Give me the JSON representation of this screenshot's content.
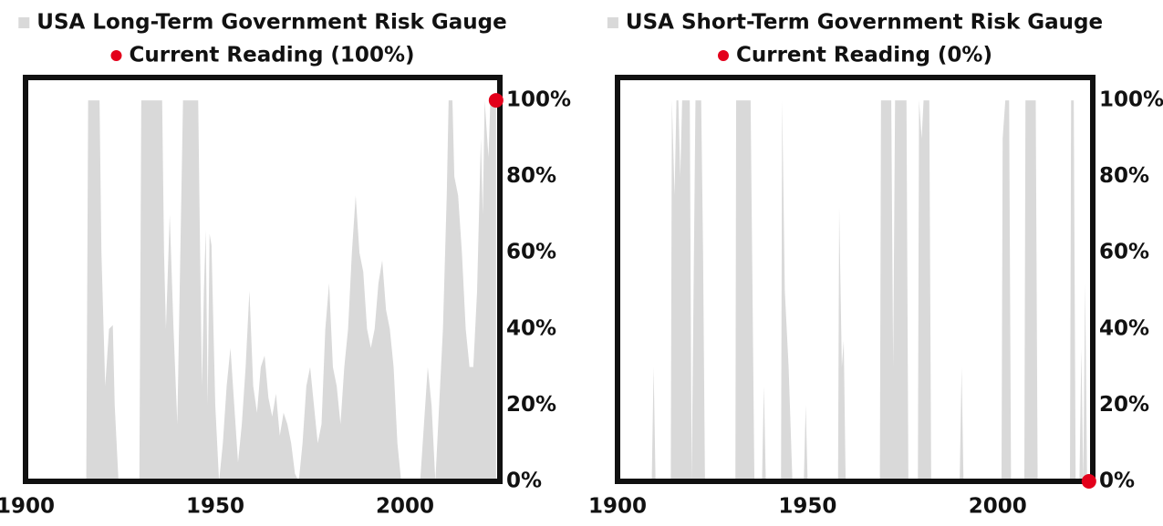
{
  "chart_data": [
    {
      "type": "area",
      "series": [
        {
          "name": "USA Long-Term Government Risk Gauge",
          "color": "#d9d9d9",
          "type": "area",
          "x": [
            1900,
            1916,
            1916.5,
            1919.5,
            1920,
            1921,
            1922,
            1923,
            1923.5,
            1924.5,
            1930,
            1930.5,
            1936,
            1936.5,
            1937,
            1938,
            1939,
            1940,
            1941.5,
            1945.5,
            1946,
            1946.5,
            1947,
            1947.5,
            1948,
            1948.5,
            1949,
            1950,
            1951,
            1952,
            1953,
            1954,
            1955,
            1956,
            1957,
            1958,
            1959,
            1960,
            1961,
            1962,
            1963,
            1964,
            1965,
            1966,
            1967,
            1968,
            1969,
            1970,
            1971,
            1972,
            1973,
            1974,
            1975,
            1976,
            1977,
            1978,
            1979,
            1980,
            1981,
            1982,
            1983,
            1984,
            1985,
            1986,
            1987,
            1988,
            1989,
            1990,
            1991,
            1992,
            1993,
            1994,
            1995,
            1996,
            1997,
            1998,
            1999,
            2004,
            2005,
            2006,
            2007,
            2008,
            2009,
            2010,
            2011,
            2011.5,
            2012.5,
            2013,
            2014,
            2015,
            2016,
            2017,
            2018,
            2019,
            2020,
            2020.5,
            2021,
            2022,
            2022.5,
            2024
          ],
          "values": [
            0,
            0,
            100,
            100,
            60,
            25,
            40,
            41,
            20,
            0,
            0,
            100,
            100,
            60,
            40,
            70,
            40,
            15,
            100,
            100,
            60,
            25,
            50,
            66,
            20,
            65,
            62,
            20,
            0,
            10,
            25,
            35,
            20,
            5,
            15,
            30,
            50,
            25,
            18,
            30,
            33,
            22,
            17,
            23,
            12,
            18,
            15,
            10,
            2,
            0,
            10,
            25,
            30,
            20,
            10,
            15,
            40,
            52,
            30,
            25,
            15,
            30,
            40,
            60,
            75,
            60,
            55,
            40,
            35,
            40,
            52,
            58,
            45,
            40,
            30,
            10,
            0,
            0,
            15,
            30,
            20,
            0,
            20,
            40,
            75,
            100,
            100,
            80,
            75,
            60,
            40,
            30,
            30,
            50,
            90,
            70,
            100,
            85,
            100,
            100
          ]
        },
        {
          "name": "Current Reading (100%)",
          "color": "#e3001b",
          "type": "scatter",
          "x": [
            2024
          ],
          "values": [
            100
          ]
        }
      ],
      "xlim": [
        1900,
        2025
      ],
      "xticks": [
        1900,
        1950,
        2000
      ],
      "ylim": [
        0,
        106
      ],
      "yticks": [
        {
          "value": 0,
          "label": "0%"
        },
        {
          "value": 20,
          "label": "20%"
        },
        {
          "value": 40,
          "label": "40%"
        },
        {
          "value": 60,
          "label": "60%"
        },
        {
          "value": 80,
          "label": "80%"
        },
        {
          "value": 100,
          "label": "100%"
        }
      ]
    },
    {
      "type": "area",
      "series": [
        {
          "name": "USA Short-Term Government Risk Gauge",
          "color": "#d9d9d9",
          "type": "area",
          "x": [
            1900,
            1909,
            1909.5,
            1910,
            1914,
            1914.3,
            1915,
            1915.5,
            1916,
            1916.5,
            1917,
            1919,
            1919.5,
            1920.5,
            1922,
            1922.5,
            1923,
            1931,
            1931.2,
            1935,
            1935.5,
            1936,
            1938,
            1938.5,
            1939,
            1943,
            1943.3,
            1944,
            1945,
            1946,
            1949,
            1949.5,
            1950,
            1958,
            1958.3,
            1959,
            1959.5,
            1960,
            1969,
            1969.3,
            1972,
            1972.5,
            1973,
            1976,
            1976.5,
            1979,
            1979.3,
            1980,
            1980.5,
            1982,
            1982.5,
            1990,
            1990.5,
            1991,
            2001,
            2001.3,
            2002,
            2003,
            2003.5,
            2007,
            2007.3,
            2010,
            2010.5,
            2019,
            2019.3,
            2020,
            2020.5,
            2021.5,
            2022,
            2022.5,
            2023,
            2023.5,
            2024
          ],
          "values": [
            0,
            0,
            30,
            0,
            0,
            100,
            75,
            100,
            100,
            80,
            100,
            100,
            0,
            100,
            100,
            60,
            0,
            0,
            100,
            100,
            50,
            0,
            0,
            25,
            0,
            0,
            100,
            50,
            30,
            0,
            0,
            20,
            0,
            0,
            72,
            30,
            37,
            0,
            0,
            100,
            100,
            30,
            100,
            100,
            0,
            0,
            100,
            90,
            100,
            100,
            0,
            0,
            30,
            0,
            0,
            90,
            100,
            100,
            0,
            0,
            100,
            100,
            0,
            0,
            100,
            100,
            0,
            0,
            35,
            0,
            52,
            0,
            0
          ]
        },
        {
          "name": "Current Reading (0%)",
          "color": "#e3001b",
          "type": "scatter",
          "x": [
            2024
          ],
          "values": [
            0
          ]
        }
      ],
      "xlim": [
        1900,
        2025
      ],
      "xticks": [
        1900,
        1950,
        2000
      ],
      "ylim": [
        0,
        106
      ],
      "yticks": [
        {
          "value": 0,
          "label": "0%"
        },
        {
          "value": 20,
          "label": "20%"
        },
        {
          "value": 40,
          "label": "40%"
        },
        {
          "value": 60,
          "label": "60%"
        },
        {
          "value": 80,
          "label": "80%"
        },
        {
          "value": 100,
          "label": "100%"
        }
      ]
    }
  ]
}
